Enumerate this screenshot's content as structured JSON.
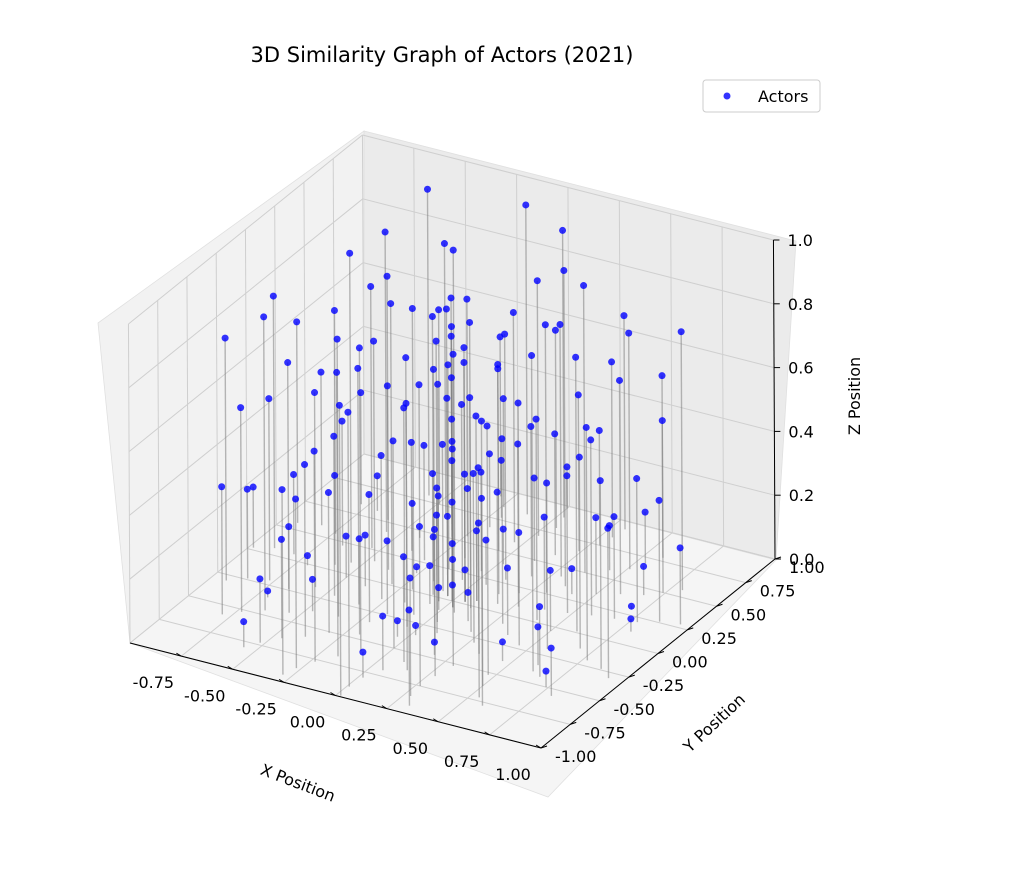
{
  "chart_data": {
    "type": "scatter3d",
    "title": "3D Similarity Graph of Actors (2021)",
    "xlabel": "X Position",
    "ylabel": "Y Position",
    "zlabel": "Z Position",
    "xlim": [
      -1.0,
      1.0
    ],
    "ylim": [
      -1.0,
      1.0
    ],
    "zlim": [
      0.0,
      1.0
    ],
    "x_ticks": [
      "-0.75",
      "-0.50",
      "-0.25",
      "0.00",
      "0.25",
      "0.50",
      "0.75",
      "1.00"
    ],
    "x_tick_values": [
      -0.75,
      -0.5,
      -0.25,
      0.0,
      0.25,
      0.5,
      0.75,
      1.0
    ],
    "y_ticks": [
      "-1.00",
      "-0.75",
      "-0.50",
      "-0.25",
      "0.00",
      "0.25",
      "0.50",
      "0.75",
      "1.00"
    ],
    "y_tick_values": [
      -1.0,
      -0.75,
      -0.5,
      -0.25,
      0.0,
      0.25,
      0.5,
      0.75,
      1.0
    ],
    "z_ticks": [
      "0.0",
      "0.2",
      "0.4",
      "0.6",
      "0.8",
      "1.0"
    ],
    "z_tick_values": [
      0.0,
      0.2,
      0.4,
      0.6,
      0.8,
      1.0
    ],
    "grid": true,
    "legend": {
      "position": "top-right",
      "entries": [
        "Actors"
      ]
    },
    "series": [
      {
        "name": "Actors",
        "color": "#0000ff",
        "edge_color": "#808080",
        "points": [
          [
            0.0,
            0.0,
            0.05
          ],
          [
            0.0,
            0.0,
            0.18
          ],
          [
            0.0,
            0.0,
            0.31
          ],
          [
            0.0,
            0.0,
            0.44
          ],
          [
            0.0,
            0.0,
            0.57
          ],
          [
            0.0,
            0.0,
            0.7
          ],
          [
            0.0,
            0.0,
            0.83
          ],
          [
            0.0,
            0.0,
            0.95
          ],
          [
            0.05,
            0.02,
            0.1
          ],
          [
            0.05,
            0.02,
            0.4
          ],
          [
            0.05,
            0.02,
            0.75
          ],
          [
            -0.04,
            0.03,
            0.25
          ],
          [
            -0.04,
            0.03,
            0.62
          ],
          [
            -0.04,
            0.03,
            0.9
          ],
          [
            0.03,
            -0.05,
            0.15
          ],
          [
            0.03,
            -0.05,
            0.52
          ],
          [
            0.03,
            -0.05,
            0.88
          ],
          [
            -0.05,
            -0.03,
            0.33
          ],
          [
            -0.05,
            -0.03,
            0.68
          ],
          [
            0.09,
            0.05,
            0.22
          ],
          [
            0.09,
            0.05,
            0.58
          ],
          [
            -0.08,
            0.06,
            0.46
          ],
          [
            0.06,
            -0.09,
            0.81
          ],
          [
            -0.07,
            -0.07,
            0.12
          ],
          [
            0.1,
            -0.02,
            0.66
          ],
          [
            -0.1,
            0.01,
            0.38
          ],
          [
            0.02,
            0.1,
            0.92
          ],
          [
            -0.01,
            -0.1,
            0.07
          ],
          [
            0.18,
            0.07,
            0.35
          ],
          [
            0.14,
            0.15,
            0.72
          ],
          [
            0.05,
            0.2,
            0.14
          ],
          [
            -0.06,
            0.19,
            0.55
          ],
          [
            -0.16,
            0.12,
            0.83
          ],
          [
            -0.2,
            0.01,
            0.27
          ],
          [
            -0.17,
            -0.11,
            0.61
          ],
          [
            -0.08,
            -0.19,
            0.96
          ],
          [
            0.04,
            -0.2,
            0.42
          ],
          [
            0.15,
            -0.13,
            0.09
          ],
          [
            0.27,
            0.09,
            0.51
          ],
          [
            0.21,
            0.2,
            0.19
          ],
          [
            0.1,
            0.28,
            0.77
          ],
          [
            -0.03,
            0.3,
            0.31
          ],
          [
            -0.16,
            0.25,
            0.64
          ],
          [
            -0.26,
            0.15,
            0.02
          ],
          [
            -0.3,
            0.01,
            0.88
          ],
          [
            -0.27,
            -0.13,
            0.45
          ],
          [
            -0.18,
            -0.24,
            0.23
          ],
          [
            -0.05,
            -0.3,
            0.7
          ],
          [
            0.09,
            -0.29,
            0.37
          ],
          [
            0.21,
            -0.21,
            0.97
          ],
          [
            0.29,
            -0.08,
            0.58
          ],
          [
            0.38,
            0.12,
            0.29
          ],
          [
            0.31,
            0.26,
            0.84
          ],
          [
            0.18,
            0.36,
            0.47
          ],
          [
            0.02,
            0.4,
            0.11
          ],
          [
            -0.15,
            0.37,
            0.66
          ],
          [
            -0.29,
            0.27,
            0.36
          ],
          [
            -0.38,
            0.12,
            0.92
          ],
          [
            -0.39,
            -0.06,
            0.16
          ],
          [
            -0.33,
            -0.22,
            0.74
          ],
          [
            -0.21,
            -0.34,
            0.4
          ],
          [
            -0.04,
            -0.4,
            0.05
          ],
          [
            0.13,
            -0.38,
            0.86
          ],
          [
            0.27,
            -0.29,
            0.53
          ],
          [
            0.36,
            -0.16,
            0.21
          ],
          [
            0.4,
            0.02,
            0.63
          ],
          [
            0.48,
            0.14,
            0.43
          ],
          [
            0.41,
            0.3,
            0.08
          ],
          [
            0.29,
            0.42,
            0.79
          ],
          [
            0.12,
            0.49,
            0.26
          ],
          [
            -0.06,
            0.5,
            0.57
          ],
          [
            -0.24,
            0.44,
            0.93
          ],
          [
            -0.38,
            0.32,
            0.34
          ],
          [
            -0.47,
            0.16,
            0.69
          ],
          [
            -0.5,
            -0.03,
            0.13
          ],
          [
            -0.46,
            -0.2,
            0.5
          ],
          [
            -0.35,
            -0.36,
            0.87
          ],
          [
            -0.19,
            -0.46,
            0.3
          ],
          [
            0.0,
            -0.5,
            0.65
          ],
          [
            0.18,
            -0.47,
            0.04
          ],
          [
            0.34,
            -0.37,
            0.41
          ],
          [
            0.45,
            -0.22,
            0.76
          ],
          [
            0.5,
            -0.04,
            0.19
          ],
          [
            0.58,
            0.17,
            0.55
          ],
          [
            0.5,
            0.35,
            0.24
          ],
          [
            0.36,
            0.5,
            0.9
          ],
          [
            0.17,
            0.58,
            0.38
          ],
          [
            -0.04,
            0.6,
            0.72
          ],
          [
            -0.24,
            0.55,
            0.15
          ],
          [
            -0.41,
            0.44,
            0.48
          ],
          [
            -0.54,
            0.26,
            0.82
          ],
          [
            -0.6,
            0.05,
            0.28
          ],
          [
            -0.57,
            -0.17,
            0.61
          ],
          [
            -0.47,
            -0.37,
            0.1
          ],
          [
            -0.31,
            -0.51,
            0.44
          ],
          [
            -0.11,
            -0.59,
            0.95
          ],
          [
            0.1,
            -0.59,
            0.33
          ],
          [
            0.3,
            -0.52,
            0.68
          ],
          [
            0.46,
            -0.38,
            0.06
          ],
          [
            0.57,
            -0.19,
            0.52
          ],
          [
            0.6,
            0.01,
            0.86
          ],
          [
            0.68,
            0.19,
            0.32
          ],
          [
            0.59,
            0.4,
            0.67
          ],
          [
            0.44,
            0.57,
            0.14
          ],
          [
            0.24,
            0.66,
            0.49
          ],
          [
            0.02,
            0.7,
            0.8
          ],
          [
            -0.2,
            0.67,
            0.23
          ],
          [
            -0.4,
            0.57,
            0.58
          ],
          [
            -0.56,
            0.42,
            0.94
          ],
          [
            -0.66,
            0.22,
            0.39
          ],
          [
            -0.7,
            -0.01,
            0.03
          ],
          [
            -0.66,
            -0.24,
            0.71
          ],
          [
            -0.55,
            -0.43,
            0.27
          ],
          [
            -0.38,
            -0.59,
            0.54
          ],
          [
            -0.17,
            -0.68,
            0.89
          ],
          [
            0.06,
            -0.7,
            0.17
          ],
          [
            0.28,
            -0.64,
            0.46
          ],
          [
            0.47,
            -0.52,
            0.78
          ],
          [
            0.61,
            -0.34,
            0.12
          ],
          [
            0.69,
            -0.12,
            0.6
          ],
          [
            0.78,
            0.21,
            0.45
          ],
          [
            0.68,
            0.44,
            0.09
          ],
          [
            0.51,
            0.62,
            0.74
          ],
          [
            0.29,
            0.75,
            0.36
          ],
          [
            0.05,
            0.8,
            0.62
          ],
          [
            -0.2,
            0.77,
            0.18
          ],
          [
            -0.42,
            0.68,
            0.85
          ],
          [
            -0.61,
            0.52,
            0.42
          ],
          [
            -0.74,
            0.3,
            0.7
          ],
          [
            -0.8,
            0.05,
            0.25
          ],
          [
            -0.77,
            -0.21,
            0.57
          ],
          [
            -0.65,
            -0.46,
            0.92
          ],
          [
            -0.46,
            -0.65,
            0.31
          ],
          [
            -0.23,
            -0.77,
            0.66
          ],
          [
            0.02,
            -0.8,
            0.08
          ],
          [
            0.27,
            -0.75,
            0.5
          ],
          [
            0.5,
            -0.62,
            0.83
          ],
          [
            0.67,
            -0.43,
            0.22
          ],
          [
            0.77,
            -0.2,
            0.73
          ],
          [
            0.86,
            0.26,
            0.38
          ],
          [
            0.74,
            0.5,
            0.68
          ],
          [
            0.54,
            0.7,
            0.16
          ],
          [
            0.3,
            0.84,
            0.55
          ],
          [
            0.03,
            0.9,
            0.9
          ],
          [
            -0.24,
            0.86,
            0.34
          ],
          [
            -0.49,
            0.75,
            0.61
          ],
          [
            -0.69,
            0.57,
            0.11
          ],
          [
            -0.83,
            0.34,
            0.48
          ],
          [
            -0.9,
            0.06,
            0.79
          ],
          [
            -0.86,
            -0.24,
            0.28
          ],
          [
            -0.73,
            -0.52,
            0.64
          ],
          [
            -0.52,
            -0.73,
            0.2
          ],
          [
            -0.27,
            -0.86,
            0.53
          ],
          [
            0.01,
            -0.9,
            0.86
          ],
          [
            0.28,
            -0.85,
            0.37
          ],
          [
            0.54,
            -0.72,
            0.72
          ],
          [
            0.74,
            -0.5,
            0.05
          ],
          [
            0.86,
            -0.24,
            0.59
          ],
          [
            0.95,
            0.28,
            0.24
          ],
          [
            0.8,
            0.56,
            0.81
          ],
          [
            0.58,
            0.78,
            0.43
          ],
          [
            0.31,
            0.93,
            0.67
          ],
          [
            0.0,
            0.98,
            0.13
          ],
          [
            -0.3,
            0.94,
            0.5
          ],
          [
            -0.57,
            0.8,
            0.96
          ],
          [
            -0.78,
            0.59,
            0.35
          ],
          [
            -0.93,
            0.31,
            0.63
          ],
          [
            -0.98,
            0.02,
            0.19
          ],
          [
            -0.93,
            -0.3,
            0.76
          ],
          [
            -0.79,
            -0.58,
            0.4
          ],
          [
            -0.56,
            -0.8,
            0.08
          ],
          [
            -0.29,
            -0.94,
            0.58
          ],
          [
            0.02,
            -0.99,
            0.91
          ],
          [
            0.32,
            -0.93,
            0.3
          ],
          [
            0.59,
            -0.78,
            0.65
          ],
          [
            0.8,
            -0.56,
            0.15
          ],
          [
            0.93,
            -0.3,
            0.47
          ],
          [
            0.8,
            0.12,
            0.04
          ],
          [
            -0.12,
            0.85,
            0.97
          ],
          [
            0.62,
            -0.4,
            0.99
          ],
          [
            -0.7,
            -0.35,
            0.02
          ],
          [
            0.35,
            0.35,
            0.99
          ],
          [
            -0.35,
            0.45,
            0.01
          ],
          [
            0.15,
            -0.65,
            0.98
          ],
          [
            -0.55,
            0.1,
            0.97
          ],
          [
            0.7,
            0.3,
            0.01
          ],
          [
            0.02,
            -0.35,
            0.03
          ]
        ]
      }
    ]
  }
}
